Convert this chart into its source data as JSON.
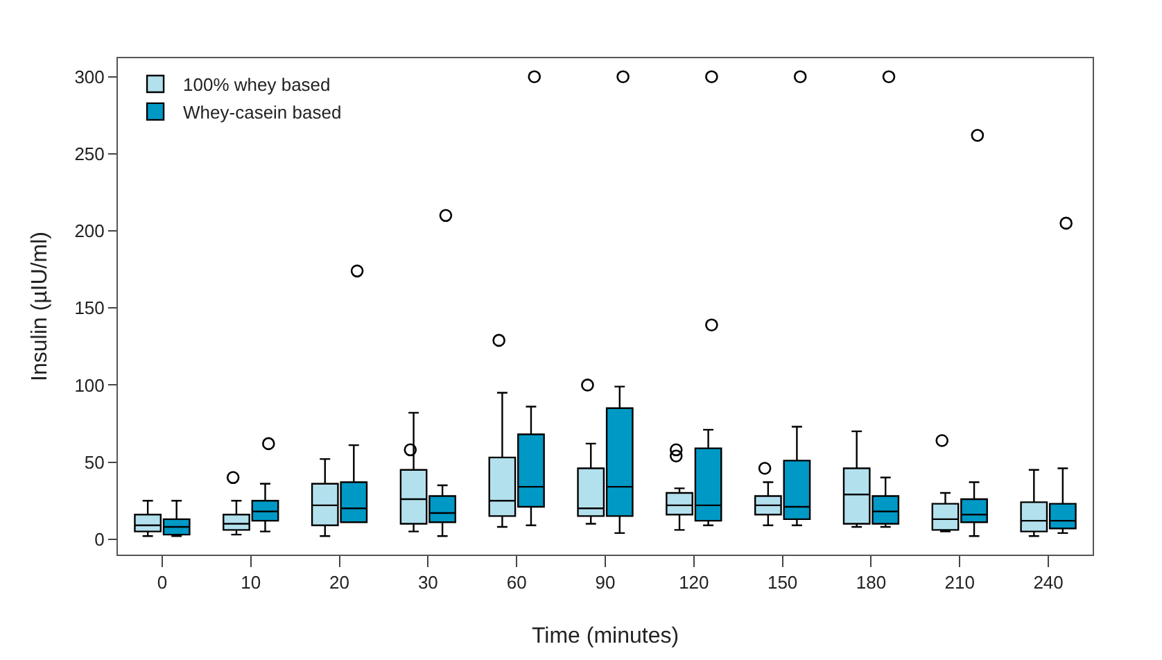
{
  "chart_data": {
    "type": "box",
    "xlabel": "Time (minutes)",
    "ylabel": "Insulin (µIU/ml)",
    "categories": [
      "0",
      "10",
      "20",
      "30",
      "60",
      "90",
      "120",
      "150",
      "180",
      "210",
      "240"
    ],
    "ylim": [
      -10,
      312
    ],
    "yticks": [
      0,
      50,
      100,
      150,
      200,
      250,
      300
    ],
    "legend": "top left",
    "series": [
      {
        "name": "100% whey based",
        "color": "#b3e0ed",
        "boxes": [
          {
            "low": 2,
            "q1": 5,
            "median": 9,
            "q3": 16,
            "high": 25
          },
          {
            "low": 3,
            "q1": 6,
            "median": 10,
            "q3": 16,
            "high": 25,
            "outliers": [
              40
            ]
          },
          {
            "low": 2,
            "q1": 9,
            "median": 22,
            "q3": 36,
            "high": 52
          },
          {
            "low": 5,
            "q1": 10,
            "median": 26,
            "q3": 45,
            "high": 82,
            "outliers": [
              58
            ]
          },
          {
            "low": 8,
            "q1": 15,
            "median": 25,
            "q3": 53,
            "high": 95,
            "outliers": [
              129
            ]
          },
          {
            "low": 10,
            "q1": 15,
            "median": 20,
            "q3": 46,
            "high": 62,
            "outliers": [
              100
            ]
          },
          {
            "low": 6,
            "q1": 16,
            "median": 22,
            "q3": 30,
            "high": 33,
            "outliers": [
              58,
              54
            ]
          },
          {
            "low": 9,
            "q1": 16,
            "median": 22,
            "q3": 28,
            "high": 37,
            "outliers": [
              46
            ]
          },
          {
            "low": 8,
            "q1": 10,
            "median": 29,
            "q3": 46,
            "high": 70
          },
          {
            "low": 5,
            "q1": 6,
            "median": 13,
            "q3": 23,
            "high": 30,
            "outliers": [
              64
            ]
          },
          {
            "low": 2,
            "q1": 5,
            "median": 12,
            "q3": 24,
            "high": 45
          }
        ]
      },
      {
        "name": "Whey-casein based",
        "color": "#0099c6",
        "boxes": [
          {
            "low": 2,
            "q1": 3,
            "median": 8,
            "q3": 13,
            "high": 25
          },
          {
            "low": 5,
            "q1": 12,
            "median": 18,
            "q3": 25,
            "high": 36,
            "outliers": [
              62
            ]
          },
          {
            "low": 11,
            "q1": 11,
            "median": 20,
            "q3": 37,
            "high": 61,
            "outliers": [
              174
            ]
          },
          {
            "low": 2,
            "q1": 11,
            "median": 17,
            "q3": 28,
            "high": 35,
            "outliers": [
              210
            ]
          },
          {
            "low": 9,
            "q1": 21,
            "median": 34,
            "q3": 68,
            "high": 86,
            "outliers": [
              300
            ]
          },
          {
            "low": 4,
            "q1": 15,
            "median": 34,
            "q3": 85,
            "high": 99,
            "outliers": [
              300
            ]
          },
          {
            "low": 9,
            "q1": 12,
            "median": 22,
            "q3": 59,
            "high": 71,
            "outliers": [
              300,
              139
            ]
          },
          {
            "low": 9,
            "q1": 13,
            "median": 21,
            "q3": 51,
            "high": 73,
            "outliers": [
              300
            ]
          },
          {
            "low": 8,
            "q1": 10,
            "median": 18,
            "q3": 28,
            "high": 40,
            "outliers": [
              300
            ]
          },
          {
            "low": 2,
            "q1": 11,
            "median": 16,
            "q3": 26,
            "high": 37,
            "outliers": [
              262
            ]
          },
          {
            "low": 4,
            "q1": 7,
            "median": 12,
            "q3": 23,
            "high": 46,
            "outliers": [
              205
            ]
          }
        ]
      }
    ]
  }
}
